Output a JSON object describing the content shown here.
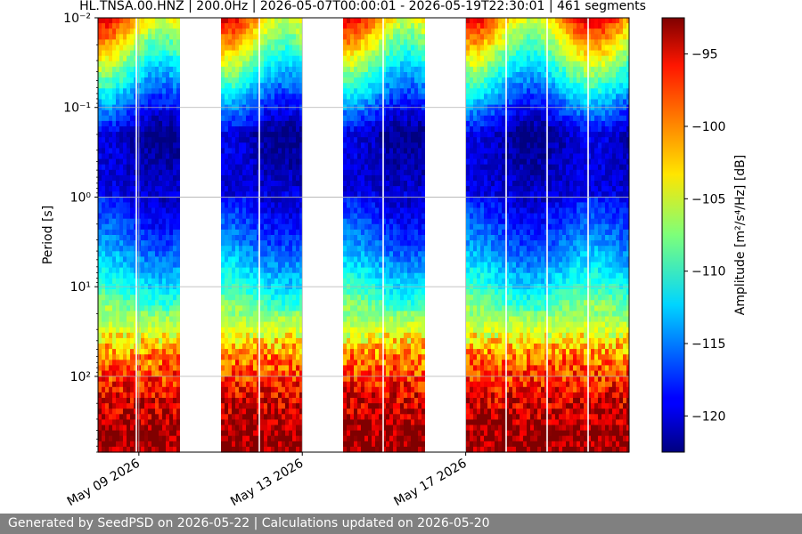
{
  "chart_data": {
    "type": "heatmap",
    "title": "HL.TNSA.00.HNZ | 200.0Hz | 2026-05-07T00:00:01 - 2026-05-19T22:30:01 | 461 segments",
    "ylabel": "Period [s]",
    "colorbar_label": "Amplitude [m²/s⁴/Hz] [dB]",
    "yscale": "log",
    "y_inverted": true,
    "y_range_s": [
      0.01,
      700
    ],
    "y_tick_values": [
      0.01,
      0.1,
      1,
      10,
      100
    ],
    "y_ticks": [
      "10⁻²",
      "10⁻¹",
      "10⁰",
      "10¹",
      "10²"
    ],
    "x_range_days_after_may_08": [
      0,
      13
    ],
    "x_ticks": [
      {
        "label": "May 09 2026",
        "day": 1
      },
      {
        "label": "May 13 2026",
        "day": 5
      },
      {
        "label": "May 17 2026",
        "day": 9
      }
    ],
    "data_day_blocks": [
      [
        0,
        2
      ],
      [
        3,
        5
      ],
      [
        6,
        8
      ],
      [
        9,
        13
      ]
    ],
    "grid": true,
    "colormap": "jet",
    "colorbar_range_db": [
      -122.5,
      -92.5
    ],
    "colorbar_ticks": [
      -95,
      -100,
      -105,
      -110,
      -115,
      -120
    ],
    "colorbar_tick_labels": [
      "−95",
      "−100",
      "−105",
      "−110",
      "−115",
      "−120"
    ],
    "amplitude_profile_db": [
      {
        "period_s": 0.01,
        "db": -100
      },
      {
        "period_s": 0.03,
        "db": -108
      },
      {
        "period_s": 0.08,
        "db": -115
      },
      {
        "period_s": 0.2,
        "db": -121
      },
      {
        "period_s": 0.8,
        "db": -120
      },
      {
        "period_s": 3,
        "db": -116
      },
      {
        "period_s": 10,
        "db": -111
      },
      {
        "period_s": 30,
        "db": -105
      },
      {
        "period_s": 60,
        "db": -100
      },
      {
        "period_s": 150,
        "db": -96
      },
      {
        "period_s": 400,
        "db": -93
      }
    ]
  },
  "footer": {
    "text": "Generated by SeedPSD on 2026-05-22 | Calculations updated on 2026-05-20"
  }
}
